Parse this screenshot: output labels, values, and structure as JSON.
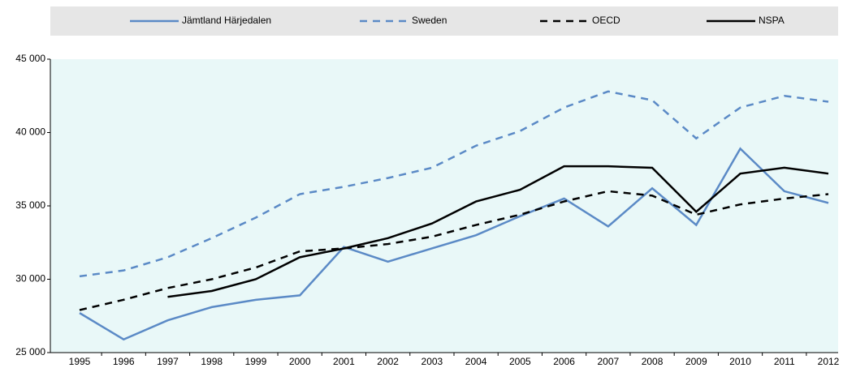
{
  "chart_data": {
    "type": "line",
    "categories": [
      "1995",
      "1996",
      "1997",
      "1998",
      "1999",
      "2000",
      "2001",
      "2002",
      "2003",
      "2004",
      "2005",
      "2006",
      "2007",
      "2008",
      "2009",
      "2010",
      "2011",
      "2012"
    ],
    "series": [
      {
        "name": "Jämtland Härjedalen",
        "color": "#5b8ac6",
        "dash": false,
        "values": [
          27700,
          25900,
          27200,
          28100,
          28600,
          28900,
          32200,
          31200,
          32100,
          33000,
          34300,
          35500,
          33600,
          36200,
          33700,
          38900,
          36000,
          35200
        ]
      },
      {
        "name": "Sweden",
        "color": "#5b8ac6",
        "dash": true,
        "values": [
          30200,
          30600,
          31500,
          32800,
          34200,
          35800,
          36300,
          36900,
          37600,
          39100,
          40100,
          41700,
          42800,
          42200,
          39600,
          41700,
          42500,
          42100
        ]
      },
      {
        "name": "OECD",
        "color": "#000000",
        "dash": true,
        "values": [
          27900,
          28600,
          29400,
          30000,
          30800,
          31900,
          32100,
          32400,
          32900,
          33700,
          34400,
          35300,
          36000,
          35700,
          34400,
          35100,
          35500,
          35800
        ]
      },
      {
        "name": "NSPA",
        "color": "#000000",
        "dash": false,
        "values": [
          null,
          null,
          28800,
          29200,
          30000,
          31500,
          32100,
          32800,
          33800,
          35300,
          36100,
          37700,
          37700,
          37600,
          34600,
          37200,
          37600,
          37200
        ]
      }
    ],
    "ylim": [
      25000,
      45000
    ],
    "yticks": [
      {
        "value": 25000,
        "label": "25 000"
      },
      {
        "value": 30000,
        "label": "30 000"
      },
      {
        "value": 35000,
        "label": "35 000"
      },
      {
        "value": 40000,
        "label": "40 000"
      },
      {
        "value": 45000,
        "label": "45 000"
      }
    ],
    "grid": false
  }
}
